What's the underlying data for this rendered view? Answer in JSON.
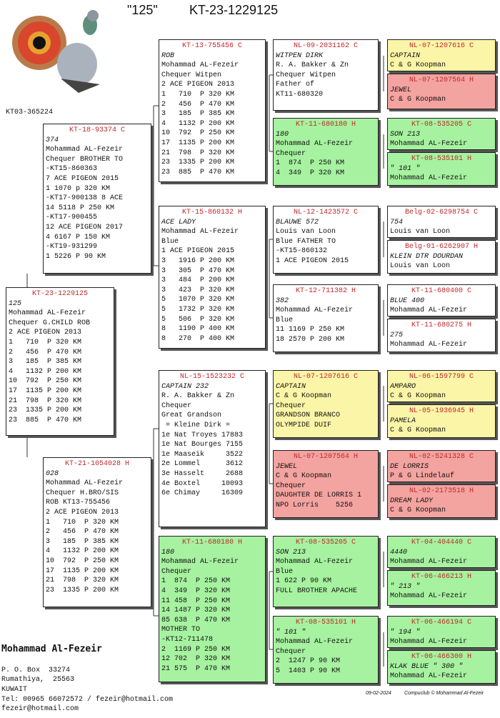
{
  "header": {
    "name": "\"125\"",
    "ring": "KT-23-1229125",
    "photo_ring": "KT03-365224"
  },
  "boxes": [
    {
      "id": "KT-23-1229125",
      "color": "#ffffff",
      "lines": [
        "125",
        "Mohammad AL-Fezeir",
        "Chequer G.CHILD ROB",
        "2 ACE PIGEON 2013",
        "1   710  P 320 KM",
        "2   456  P 470 KM",
        "3   185  P 385 KM",
        "4   1132 P 200 KM",
        "10  792  P 250 KM",
        "17  1135 P 200 KM",
        "21  798  P 320 KM",
        "23  1335 P 200 KM",
        "23  885  P 470 KM"
      ]
    },
    {
      "id": "KT-18-93374 C",
      "color": "#ffffff",
      "lines": [
        "374",
        "Mohammad AL-Fezeir",
        "Chequer BROTHER TO",
        "-KT15-860363",
        "7 ACE PIGEON 2015",
        "1 1070 p 320 KM",
        "-KT17-900138 8 ACE",
        "14 5118 P 250 KM",
        "-KT17-900455",
        "12 ACE PIGEON 2017",
        "4 6167 P 150 KM",
        "-KT19-931299",
        "1 5226 P 90 KM"
      ]
    },
    {
      "id": "KT-21-1054028 H",
      "color": "#ffffff",
      "lines": [
        "028",
        "Mohammad AL-Fezeir",
        "Chequer H.BRO/SIS",
        "ROB KT13-755456",
        "2 ACE PIGEON 2013",
        "1   710  P 320 KM",
        "2   456  P 470 KM",
        "3   185  P 385 KM",
        "4   1132 P 200 KM",
        "10  792  P 250 KM",
        "17  1135 P 200 KM",
        "21  798  P 320 KM",
        "23  1335 P 200 KM"
      ]
    },
    {
      "id": "KT-13-755456 C",
      "color": "#ffffff",
      "lines": [
        "ROB",
        "Mohammad AL-Fezeir",
        "Chequer Witpen",
        "2 ACE PIGEON 2013",
        "1   710  P 320 KM",
        "2   456  P 470 KM",
        "3   185  P 385 KM",
        "4   1132 P 200 KM",
        "10  792  P 250 KM",
        "17  1135 P 200 KM",
        "21  798  P 320 KM",
        "23  1335 P 200 KM",
        "23  885  P 470 KM"
      ]
    },
    {
      "id": "KT-15-860132 H",
      "color": "#ffffff",
      "lines": [
        "ACE LADY",
        "Mohammad AL-Fezeir",
        "Blue",
        "1 ACE PIGEON 2015",
        "3   1916 P 200 KM",
        "3   305  P 470 KM",
        "3   484  P 200 KM",
        "3   423  P 320 KM",
        "5   1070 P 320 KM",
        "5   1732 P 320 KM",
        "5   506  P 320 KM",
        "8   1190 P 400 KM",
        "8   270  P 400 KM"
      ]
    },
    {
      "id": "NL-15-1523232 C",
      "color": "#ffffff",
      "lines": [
        "CAPTAIN 232",
        "R. A. Bakker & Zn",
        "Chequer",
        "Great Grandson",
        " = Kleine Dirk =",
        "1e Nat Troyes 17883",
        "1e Nat Bourges 7155",
        "1e Maaseik     3522",
        "2e Lommel      3612",
        "3e Hasselt     2688",
        "4e Boxtel     10093",
        "6e Chimay     16309"
      ]
    },
    {
      "id": "KT-11-680180 H",
      "color": "#a6f2a0",
      "lines": [
        "180",
        "Mohammad AL-Fezeir",
        "Chequer",
        "1  874  P 250 KM",
        "4  349  P 320 KM",
        "11 458  P 250 KM",
        "14 1487 P 320 KM",
        "85 638  P 470 KM",
        "MOTHER TO",
        "-KT12-711478",
        "2  1169 P 250 KM",
        "12 702  P 320 KM",
        "21 575  P 470 KM"
      ]
    },
    {
      "id": "NL-09-2031162 C",
      "color": "#ffffff",
      "lines": [
        "WITPEN DIRK",
        "R. A. Bakker & Zn",
        "Chequer Witpen",
        "Father of",
        "KT11-680320"
      ]
    },
    {
      "id": "KT-11-680180 H",
      "color": "#a6f2a0",
      "lines": [
        "180",
        "Mohammad AL-Fezeir",
        "Chequer",
        "1  874  P 250 KM",
        "4  349  P 320 KM"
      ]
    },
    {
      "id": "NL-12-1423572 C",
      "color": "#ffffff",
      "lines": [
        "BLAUWE 572",
        "Louis van Loon",
        "Blue FATHER TO",
        "-KT15-860132",
        "1 ACE PIGEON 2015"
      ]
    },
    {
      "id": "KT-12-711382 H",
      "color": "#ffffff",
      "lines": [
        "382",
        "Mohammad AL-Fezeir",
        "Blue",
        "11 1169 P 250 KM",
        "18 2570 P 200 KM"
      ]
    },
    {
      "id": "NL-07-1207616 C",
      "color": "#fbf5a8",
      "lines": [
        "CAPTAIN",
        "C & G Koopman",
        "Chequer",
        "GRANDSON BRANCO",
        "OLYMPIDE DUIF"
      ]
    },
    {
      "id": "NL-07-1207564 H",
      "color": "#f3a3a0",
      "lines": [
        "JEWEL",
        "C & G Koopman",
        "Chequer",
        "DAUGHTER DE LORRIS 1",
        "NPO Lorris    5256"
      ]
    },
    {
      "id": "KT-08-535205 C",
      "color": "#a6f2a0",
      "lines": [
        "SON 213",
        "Mohammad AL-Fezeir",
        "Blue",
        "1 622 P 90 KM",
        "FULL BROTHER APACHE"
      ]
    },
    {
      "id": "KT-08-535101 H",
      "color": "#a6f2a0",
      "lines": [
        "\" 101 \"",
        "Mohammad AL-Fezeir",
        "Chequer",
        "2  1247 P 90 KM",
        "5  1403 P 90 KM"
      ]
    },
    {
      "id": "NL-07-1207616 C",
      "color": "#fbf5a8",
      "lines": [
        "CAPTAIN",
        "C & G Koopman"
      ]
    },
    {
      "id": "NL-07-1207564 H",
      "color": "#f3a3a0",
      "lines": [
        "JEWEL",
        "C & G Koopman"
      ]
    },
    {
      "id": "KT-08-535205 C",
      "color": "#a6f2a0",
      "lines": [
        "SON 213",
        "Mohammad AL-Fezeir"
      ]
    },
    {
      "id": "KT-08-535101 H",
      "color": "#a6f2a0",
      "lines": [
        "\" 101 \"",
        "Mohammad AL-Fezeir"
      ]
    },
    {
      "id": "Belg-02-6298754 C",
      "color": "#ffffff",
      "lines": [
        "754",
        "Louis van Loon"
      ]
    },
    {
      "id": "Belg-01-6262907 H",
      "color": "#ffffff",
      "lines": [
        "KLEIN DTR DOURDAN",
        "Louis van Loon"
      ]
    },
    {
      "id": "KT-11-680400 C",
      "color": "#ffffff",
      "lines": [
        "BLUE 400",
        "Mohammad AL-Fezeir"
      ]
    },
    {
      "id": "KT-11-680275 H",
      "color": "#ffffff",
      "lines": [
        "275",
        "Mohammad AL-Fezeir"
      ]
    },
    {
      "id": "NL-06-1597799 C",
      "color": "#fbf5a8",
      "lines": [
        "AMPARO",
        "C & G Koopman"
      ]
    },
    {
      "id": "NL-05-1936945 H",
      "color": "#fbf5a8",
      "lines": [
        "PAMELA",
        "C & G Koopman"
      ]
    },
    {
      "id": "NL-02-5241328 C",
      "color": "#f3a3a0",
      "lines": [
        "DE LORRIS",
        "P & G Lindelauf"
      ]
    },
    {
      "id": "NL-02-2173518 H",
      "color": "#f3a3a0",
      "lines": [
        "DREAM LADY",
        "C & G Koopman"
      ]
    },
    {
      "id": "KT-04-404440 C",
      "color": "#a6f2a0",
      "lines": [
        "4440",
        "Mohammad AL-Fezeir"
      ]
    },
    {
      "id": "KT-06-466213 H",
      "color": "#a6f2a0",
      "lines": [
        "\" 213 \"",
        "Mohammad AL-Fezeir"
      ]
    },
    {
      "id": "KT-06-466194 C",
      "color": "#a6f2a0",
      "lines": [
        "\" 194 \"",
        "Mohammad AL-Fezeir"
      ]
    },
    {
      "id": "KT-06-466300 H",
      "color": "#a6f2a0",
      "lines": [
        "KLAK BLUE \" 300 \"",
        "Mohammad AL-Fezeir"
      ]
    }
  ],
  "owner": {
    "name": "Mohammad Al-Fezeir",
    "lines": [
      "P. O. Box  33274",
      "Rumathiya,  25563",
      "KUWAIT",
      "Tel: 00965 66072572 / fezeir@hotmail.com",
      "fezeir@hotmail.com"
    ]
  },
  "footer": {
    "date": "09-02-2024",
    "credit": "Compuclub © Mohammad Al-Fezeir"
  }
}
